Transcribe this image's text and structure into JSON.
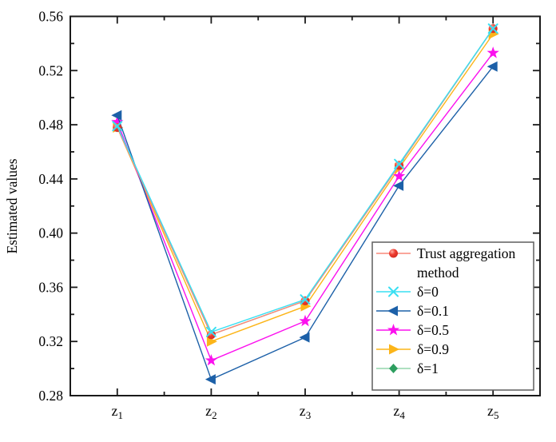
{
  "chart_data": {
    "type": "line",
    "title": "",
    "xlabel": "",
    "ylabel": "Estimated values",
    "background": "#ffffff",
    "axis_color": "#1a1a1a",
    "grid": false,
    "legend_position": "inside-bottom-right",
    "legend_border_color": "#5f5f5f",
    "ylim": [
      0.28,
      0.56
    ],
    "ytick_step": 0.04,
    "yminor_step": 0.02,
    "ytick_labels": [
      "0.28",
      "0.32",
      "0.36",
      "0.40",
      "0.44",
      "0.48",
      "0.52",
      "0.56"
    ],
    "categories": [
      {
        "base": "z",
        "sub": "1"
      },
      {
        "base": "z",
        "sub": "2"
      },
      {
        "base": "z",
        "sub": "3"
      },
      {
        "base": "z",
        "sub": "4"
      },
      {
        "base": "z",
        "sub": "5"
      }
    ],
    "series": [
      {
        "name": "Trust aggregation method",
        "legend_lines": [
          "Trust aggregation",
          "method"
        ],
        "marker": "ball",
        "line_color": "#f9897a",
        "marker_color": "#e8392e",
        "values": [
          0.478,
          0.325,
          0.35,
          0.45,
          0.551
        ]
      },
      {
        "name": "δ=0",
        "legend_lines": [
          "δ=0"
        ],
        "marker": "x",
        "line_color": "#38dff2",
        "marker_color": "#38dff2",
        "values": [
          0.479,
          0.327,
          0.351,
          0.451,
          0.551
        ]
      },
      {
        "name": "δ=0.1",
        "legend_lines": [
          "δ=0.1"
        ],
        "marker": "triangle-left",
        "line_color": "#1c60a8",
        "marker_color": "#1c60a8",
        "values": [
          0.487,
          0.292,
          0.323,
          0.435,
          0.523
        ]
      },
      {
        "name": "δ=0.5",
        "legend_lines": [
          "δ=0.5"
        ],
        "marker": "star",
        "line_color": "#fb10ee",
        "marker_color": "#fb10ee",
        "values": [
          0.482,
          0.306,
          0.335,
          0.442,
          0.533
        ]
      },
      {
        "name": "δ=0.9",
        "legend_lines": [
          "δ=0.9"
        ],
        "marker": "triangle-right",
        "line_color": "#fcb519",
        "marker_color": "#fcb519",
        "values": [
          0.478,
          0.32,
          0.346,
          0.448,
          0.547
        ]
      },
      {
        "name": "δ=1",
        "legend_lines": [
          "δ=1"
        ],
        "marker": "diamond",
        "line_color": "#93d5ab",
        "marker_color": "#2d9e5f",
        "values": [
          0.478,
          0.325,
          0.35,
          0.45,
          0.551
        ]
      }
    ],
    "draw_order": [
      5,
      4,
      3,
      2,
      0,
      1
    ]
  }
}
